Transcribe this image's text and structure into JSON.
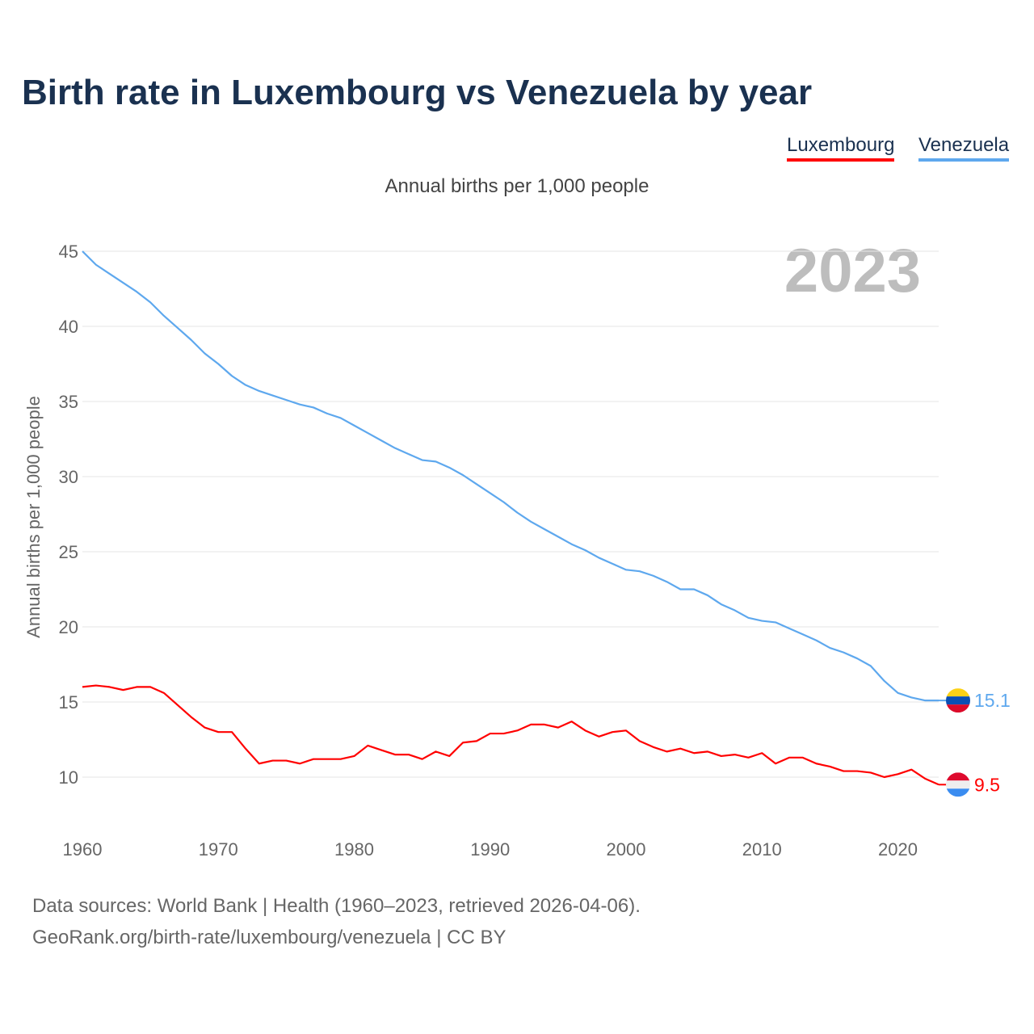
{
  "chart_data": {
    "type": "line",
    "title": "Birth rate in Luxembourg vs Venezuela by year",
    "subtitle": "Annual births per 1,000 people",
    "ylabel": "Annual births per 1,000 people",
    "xlabel": "",
    "xlim": [
      1960,
      2023
    ],
    "ylim": [
      10,
      45
    ],
    "xticks": [
      1960,
      1970,
      1980,
      1990,
      2000,
      2010,
      2020
    ],
    "yticks": [
      10,
      15,
      20,
      25,
      30,
      35,
      40,
      45
    ],
    "grid": true,
    "legend_position": "top-right",
    "watermark_year": "2023",
    "x": [
      1960,
      1961,
      1962,
      1963,
      1964,
      1965,
      1966,
      1967,
      1968,
      1969,
      1970,
      1971,
      1972,
      1973,
      1974,
      1975,
      1976,
      1977,
      1978,
      1979,
      1980,
      1981,
      1982,
      1983,
      1984,
      1985,
      1986,
      1987,
      1988,
      1989,
      1990,
      1991,
      1992,
      1993,
      1994,
      1995,
      1996,
      1997,
      1998,
      1999,
      2000,
      2001,
      2002,
      2003,
      2004,
      2005,
      2006,
      2007,
      2008,
      2009,
      2010,
      2011,
      2012,
      2013,
      2014,
      2015,
      2016,
      2017,
      2018,
      2019,
      2020,
      2021,
      2022,
      2023
    ],
    "series": [
      {
        "name": "Luxembourg",
        "color": "#ff0000",
        "end_label": "9.5",
        "flag": "luxembourg-flag",
        "values": [
          16.0,
          16.1,
          16.0,
          15.8,
          16.0,
          16.0,
          15.6,
          14.8,
          14.0,
          13.3,
          13.0,
          13.0,
          11.9,
          10.9,
          11.1,
          11.1,
          10.9,
          11.2,
          11.2,
          11.2,
          11.4,
          12.1,
          11.8,
          11.5,
          11.5,
          11.2,
          11.7,
          11.4,
          12.3,
          12.4,
          12.9,
          12.9,
          13.1,
          13.5,
          13.5,
          13.3,
          13.7,
          13.1,
          12.7,
          13.0,
          13.1,
          12.4,
          12.0,
          11.7,
          11.9,
          11.6,
          11.7,
          11.4,
          11.5,
          11.3,
          11.6,
          10.9,
          11.3,
          11.3,
          10.9,
          10.7,
          10.4,
          10.4,
          10.3,
          10.0,
          10.2,
          10.5,
          9.9,
          9.5
        ]
      },
      {
        "name": "Venezuela",
        "color": "#5ea8ee",
        "end_label": "15.1",
        "flag": "venezuela-flag",
        "values": [
          45.0,
          44.1,
          43.5,
          42.9,
          42.3,
          41.6,
          40.7,
          39.9,
          39.1,
          38.2,
          37.5,
          36.7,
          36.1,
          35.7,
          35.4,
          35.1,
          34.8,
          34.6,
          34.2,
          33.9,
          33.4,
          32.9,
          32.4,
          31.9,
          31.5,
          31.1,
          31.0,
          30.6,
          30.1,
          29.5,
          28.9,
          28.3,
          27.6,
          27.0,
          26.5,
          26.0,
          25.5,
          25.1,
          24.6,
          24.2,
          23.8,
          23.7,
          23.4,
          23.0,
          22.5,
          22.5,
          22.1,
          21.5,
          21.1,
          20.6,
          20.4,
          20.3,
          19.9,
          19.5,
          19.1,
          18.6,
          18.3,
          17.9,
          17.4,
          16.4,
          15.6,
          15.3,
          15.1,
          15.1
        ]
      }
    ]
  },
  "footer": {
    "line1": "Data sources: World Bank | Health (1960–2023, retrieved 2026-04-06).",
    "line2": "GeoRank.org/birth-rate/luxembourg/venezuela | CC BY"
  }
}
